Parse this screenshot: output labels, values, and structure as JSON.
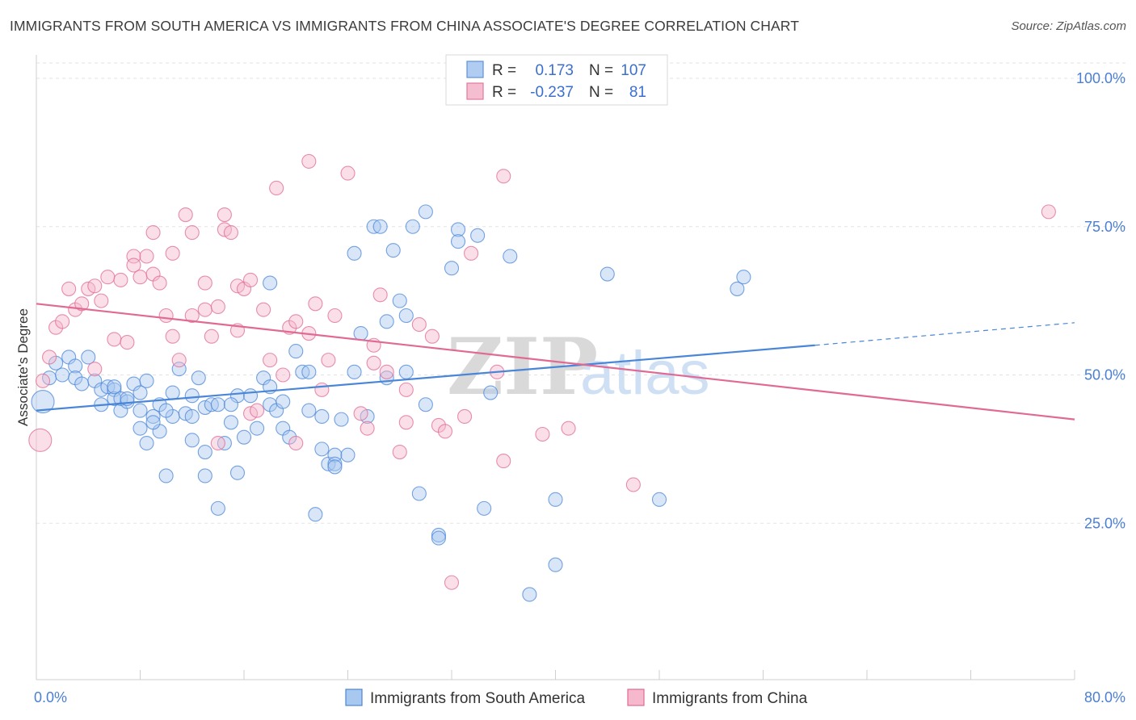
{
  "title": "IMMIGRANTS FROM SOUTH AMERICA VS IMMIGRANTS FROM CHINA ASSOCIATE'S DEGREE CORRELATION CHART",
  "source": "Source: ZipAtlas.com",
  "watermark": {
    "zip": "ZIP",
    "atlas": "atlas"
  },
  "colors": {
    "blue": "#4a86d8",
    "blue_fill": "#a8c8f0",
    "pink": "#e06a94",
    "pink_fill": "#f5b8cc"
  },
  "legend": {
    "rows": [
      {
        "r_label": "R =",
        "r_value": "0.173",
        "n_label": "N =",
        "n_value": "107"
      },
      {
        "r_label": "R =",
        "r_value": "-0.237",
        "n_label": "N =",
        "n_value": "81"
      }
    ]
  },
  "bottom_legend": [
    "Immigrants from South America",
    "Immigrants from China"
  ],
  "chart_data": {
    "type": "scatter",
    "ylabel": "Associate's Degree",
    "xlim": [
      0,
      80
    ],
    "ylim": [
      0,
      100
    ],
    "y_ticks": [
      {
        "value": 25,
        "label": "25.0%"
      },
      {
        "value": 50,
        "label": "50.0%"
      },
      {
        "value": 75,
        "label": "75.0%"
      },
      {
        "value": 100,
        "label": "100.0%"
      }
    ],
    "x_ticks": [
      {
        "value": 0,
        "label": "0.0%"
      },
      {
        "value": 80,
        "label": "80.0%"
      }
    ],
    "grid": true,
    "series": [
      {
        "name": "Immigrants from South America",
        "color": "#4a86d8",
        "trend": {
          "x0": 0,
          "y0": 44.0,
          "x1": 60,
          "y1": 55.0,
          "dash_x1": 80,
          "dash_y1": 58.8
        },
        "points": [
          [
            0.5,
            45.5
          ],
          [
            1,
            49.5
          ],
          [
            1.5,
            52
          ],
          [
            2,
            50
          ],
          [
            2.5,
            53
          ],
          [
            3,
            51.5
          ],
          [
            3,
            49.5
          ],
          [
            3.5,
            48.5
          ],
          [
            4,
            53
          ],
          [
            4.5,
            49
          ],
          [
            5,
            47.5
          ],
          [
            5,
            45
          ],
          [
            5.5,
            48
          ],
          [
            6,
            47.5
          ],
          [
            6,
            46
          ],
          [
            6.5,
            44
          ],
          [
            6.5,
            46
          ],
          [
            7,
            45.5
          ],
          [
            7.5,
            48.5
          ],
          [
            8,
            44
          ],
          [
            8,
            47
          ],
          [
            8,
            41
          ],
          [
            8.5,
            49
          ],
          [
            8.5,
            38.5
          ],
          [
            9,
            43
          ],
          [
            9.5,
            40.5
          ],
          [
            9.5,
            45
          ],
          [
            10,
            33
          ],
          [
            10.5,
            47
          ],
          [
            10.5,
            43
          ],
          [
            11,
            51
          ],
          [
            11.5,
            43.5
          ],
          [
            12,
            46.5
          ],
          [
            12,
            39
          ],
          [
            12.5,
            49.5
          ],
          [
            13,
            37
          ],
          [
            13,
            44.5
          ],
          [
            13,
            33
          ],
          [
            13.5,
            45
          ],
          [
            14,
            45
          ],
          [
            14,
            27.5
          ],
          [
            14.5,
            38.5
          ],
          [
            15,
            42
          ],
          [
            15.5,
            46.5
          ],
          [
            15.5,
            33.5
          ],
          [
            16,
            39.5
          ],
          [
            16.5,
            46.5
          ],
          [
            17,
            41
          ],
          [
            17.5,
            49.5
          ],
          [
            18,
            48
          ],
          [
            18,
            45
          ],
          [
            18.5,
            44
          ],
          [
            18,
            65.5
          ],
          [
            19,
            41
          ],
          [
            19.5,
            39.5
          ],
          [
            20,
            54
          ],
          [
            20.5,
            50.5
          ],
          [
            21,
            50.5
          ],
          [
            21.5,
            26.5
          ],
          [
            22,
            43
          ],
          [
            22,
            37.5
          ],
          [
            22.5,
            35
          ],
          [
            23,
            36.5
          ],
          [
            23,
            35
          ],
          [
            23.5,
            42.5
          ],
          [
            24,
            36.5
          ],
          [
            24.5,
            70.5
          ],
          [
            24.5,
            50.5
          ],
          [
            25,
            57
          ],
          [
            25.5,
            43
          ],
          [
            26,
            75
          ],
          [
            26.5,
            75
          ],
          [
            27,
            59
          ],
          [
            27.5,
            71
          ],
          [
            28,
            62.5
          ],
          [
            28.5,
            50.5
          ],
          [
            28.5,
            60
          ],
          [
            29,
            75
          ],
          [
            29.5,
            30
          ],
          [
            30,
            77.5
          ],
          [
            31,
            23
          ],
          [
            31,
            22.5
          ],
          [
            32,
            68
          ],
          [
            32.5,
            74.5
          ],
          [
            32.5,
            72.5
          ],
          [
            34,
            73.5
          ],
          [
            34.5,
            27.5
          ],
          [
            35,
            47
          ],
          [
            36.5,
            70
          ],
          [
            38,
            13
          ],
          [
            40,
            18
          ],
          [
            40,
            29
          ],
          [
            44,
            67
          ],
          [
            48,
            29
          ],
          [
            54,
            64.5
          ],
          [
            54.5,
            66.5
          ],
          [
            30,
            45
          ],
          [
            19,
            45.5
          ],
          [
            21,
            44
          ],
          [
            27,
            49.5
          ],
          [
            15,
            45
          ],
          [
            23,
            34.5
          ],
          [
            9,
            42
          ],
          [
            6,
            48
          ],
          [
            10,
            44
          ],
          [
            12,
            43
          ],
          [
            7,
            46
          ]
        ]
      },
      {
        "name": "Immigrants from China",
        "color": "#e06a94",
        "trend": {
          "x0": 0,
          "y0": 62.0,
          "x1": 80,
          "y1": 42.5
        },
        "points": [
          [
            0.3,
            39
          ],
          [
            0.5,
            49
          ],
          [
            1,
            53
          ],
          [
            1.5,
            58
          ],
          [
            2,
            59
          ],
          [
            2.5,
            64.5
          ],
          [
            3,
            61
          ],
          [
            3.5,
            62
          ],
          [
            4,
            64.5
          ],
          [
            4.5,
            65
          ],
          [
            4.5,
            51
          ],
          [
            5,
            62.5
          ],
          [
            5.5,
            66.5
          ],
          [
            6,
            56
          ],
          [
            6.5,
            66
          ],
          [
            7,
            55.5
          ],
          [
            7.5,
            70
          ],
          [
            7.5,
            68.5
          ],
          [
            8,
            66.5
          ],
          [
            8.5,
            70
          ],
          [
            9,
            67
          ],
          [
            9,
            74
          ],
          [
            9.5,
            65.5
          ],
          [
            10,
            60
          ],
          [
            10.5,
            56.5
          ],
          [
            10.5,
            70.5
          ],
          [
            11,
            52.5
          ],
          [
            11.5,
            77
          ],
          [
            12,
            60
          ],
          [
            12,
            74
          ],
          [
            13,
            65.5
          ],
          [
            13,
            61
          ],
          [
            13.5,
            56.5
          ],
          [
            14,
            61.5
          ],
          [
            14,
            38.5
          ],
          [
            14.5,
            77
          ],
          [
            14.5,
            74.5
          ],
          [
            15,
            74
          ],
          [
            15.5,
            65
          ],
          [
            15.5,
            57.5
          ],
          [
            16,
            64.5
          ],
          [
            16.5,
            66
          ],
          [
            16.5,
            43.5
          ],
          [
            17,
            44
          ],
          [
            17.5,
            61
          ],
          [
            18,
            52.5
          ],
          [
            18.5,
            81.5
          ],
          [
            19,
            50
          ],
          [
            19.5,
            58
          ],
          [
            20,
            59
          ],
          [
            20,
            38.5
          ],
          [
            21,
            86
          ],
          [
            21,
            57
          ],
          [
            21.5,
            62
          ],
          [
            22,
            47.5
          ],
          [
            22.5,
            52.5
          ],
          [
            23,
            60
          ],
          [
            24,
            84
          ],
          [
            25,
            43.5
          ],
          [
            25.5,
            41
          ],
          [
            26,
            55
          ],
          [
            26,
            52
          ],
          [
            26.5,
            63.5
          ],
          [
            27,
            50.5
          ],
          [
            28,
            37
          ],
          [
            28.5,
            47.5
          ],
          [
            28.5,
            42
          ],
          [
            29.5,
            58.5
          ],
          [
            30.5,
            56.5
          ],
          [
            31,
            41.5
          ],
          [
            31.5,
            40.5
          ],
          [
            32,
            15
          ],
          [
            33,
            43
          ],
          [
            33.5,
            70.5
          ],
          [
            35.5,
            50.5
          ],
          [
            36,
            83.5
          ],
          [
            36,
            35.5
          ],
          [
            39,
            40
          ],
          [
            41,
            41
          ],
          [
            46,
            31.5
          ],
          [
            78,
            77.5
          ]
        ]
      }
    ]
  }
}
